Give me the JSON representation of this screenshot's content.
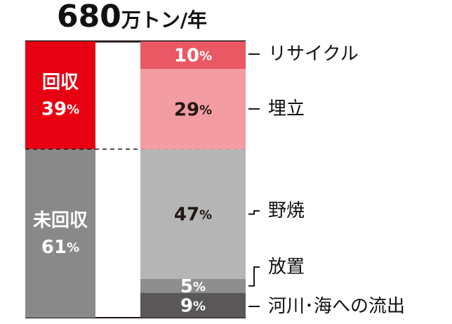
{
  "chart_data": {
    "type": "bar",
    "title_value": "680",
    "title_unit": "万トン/年",
    "groups": [
      {
        "label": "回収",
        "percent": 39,
        "color": "#e60012"
      },
      {
        "label": "未回収",
        "percent": 61,
        "color": "#898989"
      }
    ],
    "breakdown": [
      {
        "category": "リサイクル",
        "percent": 10,
        "color": "#ea5863",
        "text_color": "#ffffff"
      },
      {
        "category": "埋立",
        "percent": 29,
        "color": "#f39ca2",
        "text_color": "#231815"
      },
      {
        "category": "野焼",
        "percent": 47,
        "color": "#b5b5b6",
        "text_color": "#231815"
      },
      {
        "category": "放置",
        "percent": 5,
        "color": "#8e8e8f",
        "text_color": "#ffffff"
      },
      {
        "category": "河川･海への流出",
        "percent": 9,
        "color": "#595757",
        "text_color": "#ffffff"
      }
    ],
    "pct_symbol": "%"
  }
}
